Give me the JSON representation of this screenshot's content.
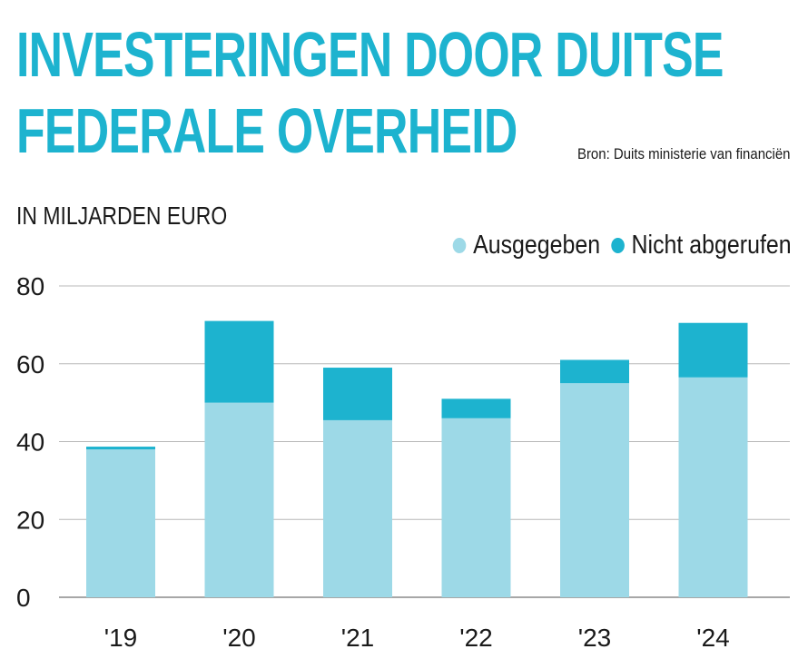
{
  "title_lines": [
    "INVESTERINGEN DOOR DUITSE",
    "FEDERALE OVERHEID"
  ],
  "source": "Bron: Duits ministerie van financiën",
  "unit_label": "IN MILJARDEN EURO",
  "colors": {
    "title": "#1db3cf",
    "ausgegeben": "#9dd9e7",
    "nicht_abgerufen": "#1db3cf",
    "grid": "#b8b8b8"
  },
  "chart_data": {
    "type": "bar",
    "stacked": true,
    "title": "INVESTERINGEN DOOR DUITSE FEDERALE OVERHEID",
    "ylabel": "IN MILJARDEN EURO",
    "categories": [
      "'19",
      "'20",
      "'21",
      "'22",
      "'23",
      "'24"
    ],
    "series": [
      {
        "name": "Ausgegeben",
        "values": [
          38,
          50,
          45.5,
          46,
          55,
          56.5
        ]
      },
      {
        "name": "Nicht abgerufen",
        "values": [
          0.7,
          21,
          13.5,
          5,
          6,
          14
        ]
      }
    ],
    "yticks": [
      0,
      20,
      40,
      60,
      80
    ],
    "ylim": [
      0,
      80
    ],
    "grid": true,
    "legend_position": "top-right"
  }
}
